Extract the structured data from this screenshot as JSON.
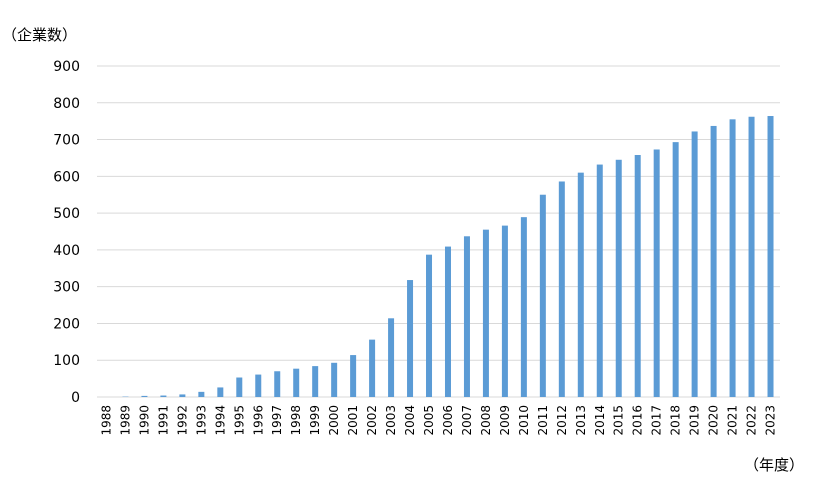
{
  "chart_data": {
    "type": "bar",
    "ylabel": "（企業数）",
    "xlabel": "（年度）",
    "ylim": [
      0,
      900
    ],
    "yticks": [
      0,
      100,
      200,
      300,
      400,
      500,
      600,
      700,
      800,
      900
    ],
    "grid": true,
    "legend": "none",
    "bar_color": "#5b9bd5",
    "grid_color": "#d9d9d9",
    "categories": [
      "1988",
      "1989",
      "1990",
      "1991",
      "1992",
      "1993",
      "1994",
      "1995",
      "1996",
      "1997",
      "1998",
      "1999",
      "2000",
      "2001",
      "2002",
      "2003",
      "2004",
      "2005",
      "2006",
      "2007",
      "2008",
      "2009",
      "2010",
      "2011",
      "2012",
      "2013",
      "2014",
      "2015",
      "2016",
      "2017",
      "2018",
      "2019",
      "2020",
      "2021",
      "2022",
      "2023"
    ],
    "values": [
      0,
      1,
      3,
      4,
      7,
      14,
      26,
      53,
      61,
      70,
      77,
      84,
      93,
      114,
      156,
      214,
      318,
      387,
      409,
      437,
      455,
      466,
      489,
      550,
      586,
      610,
      632,
      645,
      658,
      673,
      693,
      722,
      737,
      755,
      762,
      764
    ]
  }
}
